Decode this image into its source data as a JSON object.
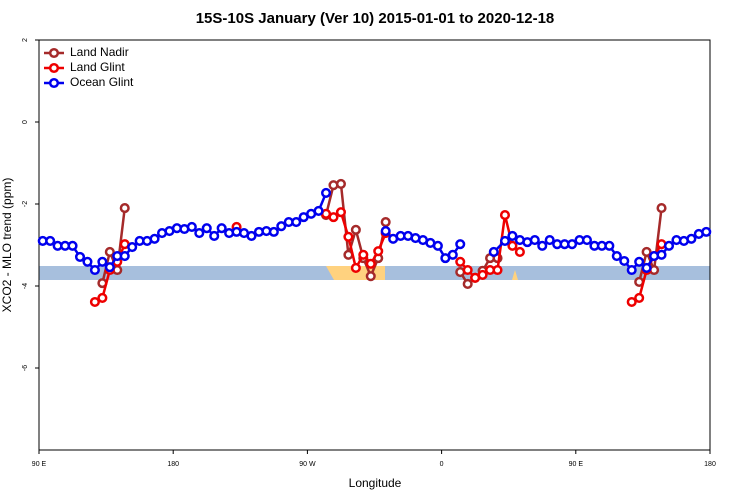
{
  "chart_data": {
    "type": "line",
    "title": "15S-10S January (Ver 10)   2015-01-01 to 2020-12-18",
    "xlabel": "Longitude",
    "ylabel": "XCO2 - MLO trend (ppm)",
    "xlim": [
      90,
      540
    ],
    "xticks": [
      {
        "value": 90,
        "label": "90 E"
      },
      {
        "value": 180,
        "label": "180"
      },
      {
        "value": 270,
        "label": "90 W"
      },
      {
        "value": 360,
        "label": "0"
      },
      {
        "value": 450,
        "label": "90 E"
      },
      {
        "value": 540,
        "label": "180"
      }
    ],
    "ylim": [
      -8,
      2
    ],
    "yticks": [
      2,
      0,
      -2,
      -4,
      -6
    ],
    "legend": "top-left",
    "series": [
      {
        "name": "Land Nadir",
        "color": "#a52a2a",
        "x": [
          132.5,
          137.5,
          142.5,
          147.5,
          null,
          282.5,
          287.5,
          292.5,
          297.5,
          302.5,
          307.5,
          312.5,
          317.5,
          322.5,
          null,
          372.5,
          377.5,
          382.5,
          387.5,
          392.5,
          397.5,
          null,
          492.5,
          497.5,
          502.5,
          507.5
        ],
        "values": [
          -3.93,
          -3.17,
          -3.61,
          -2.1,
          null,
          -2.27,
          -1.54,
          -1.51,
          -3.24,
          -2.63,
          -3.32,
          -3.76,
          -3.32,
          -2.44,
          null,
          -3.66,
          -3.95,
          -3.8,
          -3.63,
          -3.32,
          -3.32,
          null,
          -3.9,
          -3.17,
          -3.61,
          -2.1
        ]
      },
      {
        "name": "Land Glint",
        "color": "#ee0000",
        "x": [
          127.5,
          132.5,
          137.5,
          142.5,
          147.5,
          null,
          222.5,
          null,
          282.5,
          287.5,
          292.5,
          297.5,
          302.5,
          307.5,
          312.5,
          317.5,
          322.5,
          null,
          372.5,
          377.5,
          382.5,
          387.5,
          392.5,
          397.5,
          402.5,
          407.5,
          412.5,
          null,
          487.5,
          492.5,
          497.5,
          502.5,
          507.5
        ],
        "values": [
          -4.39,
          -4.29,
          -3.61,
          -3.41,
          -2.98,
          null,
          -2.56,
          null,
          -2.24,
          -2.32,
          -2.2,
          -2.8,
          -3.56,
          -3.24,
          -3.46,
          -3.15,
          -2.71,
          null,
          -3.41,
          -3.61,
          -3.8,
          -3.73,
          -3.61,
          -3.61,
          -2.27,
          -3.02,
          -3.17,
          null,
          -4.39,
          -4.29,
          -3.61,
          -3.27,
          -2.98
        ]
      },
      {
        "name": "Ocean Glint",
        "color": "#0000ee",
        "x": [
          92.5,
          97.5,
          102.5,
          107.5,
          112.5,
          117.5,
          122.5,
          127.5,
          132.5,
          137.5,
          142.5,
          147.5,
          152.5,
          157.5,
          162.5,
          167.5,
          172.5,
          177.5,
          182.5,
          187.5,
          192.5,
          197.5,
          202.5,
          207.5,
          212.5,
          217.5,
          222.5,
          227.5,
          232.5,
          237.5,
          242.5,
          247.5,
          252.5,
          257.5,
          262.5,
          267.5,
          272.5,
          277.5,
          282.5,
          null,
          322.5,
          327.5,
          332.5,
          337.5,
          342.5,
          347.5,
          352.5,
          357.5,
          362.5,
          367.5,
          372.5,
          null,
          395,
          402.5,
          407.5,
          412.5,
          417.5,
          422.5,
          427.5,
          432.5,
          437.5,
          442.5,
          447.5,
          452.5,
          457.5,
          462.5,
          467.5,
          472.5,
          477.5,
          482.5,
          487.5,
          492.5,
          497.5,
          502.5,
          507.5,
          512.5,
          517.5,
          522.5,
          527.5,
          532.5,
          537.5
        ],
        "values": [
          -2.9,
          -2.9,
          -3.02,
          -3.02,
          -3.02,
          -3.29,
          -3.41,
          -3.61,
          -3.41,
          -3.54,
          -3.27,
          -3.27,
          -3.05,
          -2.9,
          -2.9,
          -2.85,
          -2.71,
          -2.66,
          -2.59,
          -2.61,
          -2.56,
          -2.71,
          -2.59,
          -2.78,
          -2.59,
          -2.71,
          -2.68,
          -2.71,
          -2.78,
          -2.68,
          -2.66,
          -2.68,
          -2.54,
          -2.44,
          -2.44,
          -2.32,
          -2.24,
          -2.17,
          -1.73,
          null,
          -2.66,
          -2.85,
          -2.78,
          -2.78,
          -2.83,
          -2.88,
          -2.95,
          -3.02,
          -3.32,
          -3.24,
          -2.98,
          null,
          -3.17,
          -2.9,
          -2.78,
          -2.88,
          -2.93,
          -2.88,
          -3.02,
          -2.88,
          -2.98,
          -2.98,
          -2.98,
          -2.88,
          -2.88,
          -3.02,
          -3.02,
          -3.02,
          -3.27,
          -3.39,
          -3.61,
          -3.41,
          -3.56,
          -3.27,
          -3.24,
          -3.02,
          -2.88,
          -2.9,
          -2.85,
          -2.73,
          -2.68
        ]
      }
    ]
  }
}
